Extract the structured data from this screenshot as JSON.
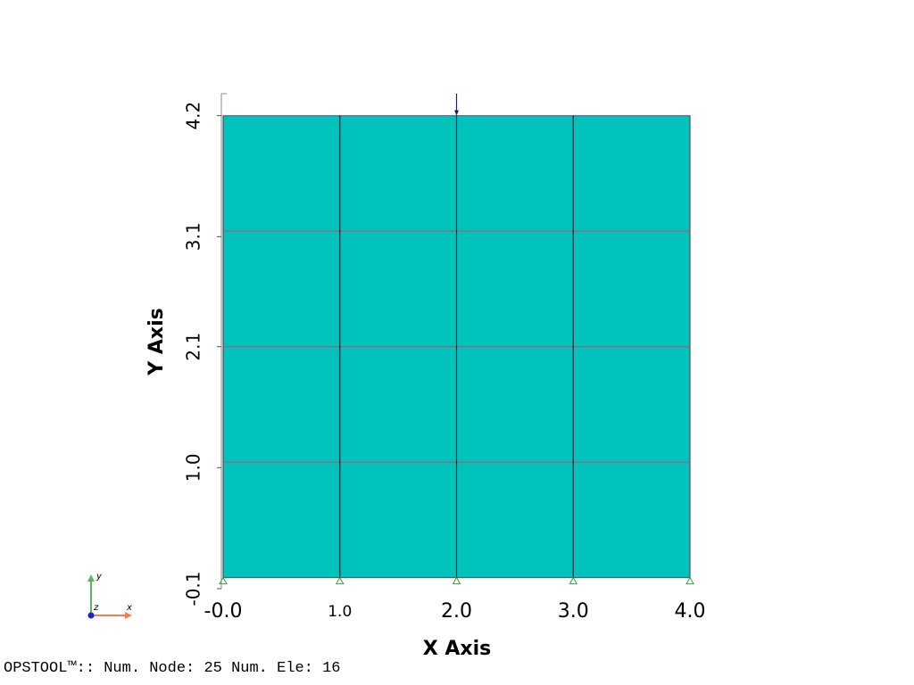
{
  "chart_data": {
    "type": "mesh",
    "x_axis_label": "X Axis",
    "y_axis_label": "Y Axis",
    "x": [
      0,
      1,
      2,
      3,
      4
    ],
    "y": [
      0,
      1.05,
      2.1,
      3.15,
      4.2
    ],
    "color": "#00c4bc",
    "xlim": [
      0,
      4
    ],
    "ylim": [
      -0.1,
      4.4
    ],
    "xticks": [
      {
        "value": 0,
        "label": "-0.0"
      },
      {
        "value": 1,
        "label": "1.0"
      },
      {
        "value": 2,
        "label": "2.0"
      },
      {
        "value": 3,
        "label": "3.0"
      },
      {
        "value": 4,
        "label": "4.0"
      }
    ],
    "yticks": [
      -0.1,
      {
        "value": 1,
        "label": "1.0"
      },
      2.1,
      3.1,
      4.2
    ],
    "load_x": 2,
    "triad": {
      "y": "y",
      "z": "z",
      "x": "x"
    },
    "footer": {
      "prefix": "OPSTOOL™:: Num. Node:",
      "nodes": 25,
      "elements_label": "Num. Ele:",
      "elements": 16
    }
  }
}
